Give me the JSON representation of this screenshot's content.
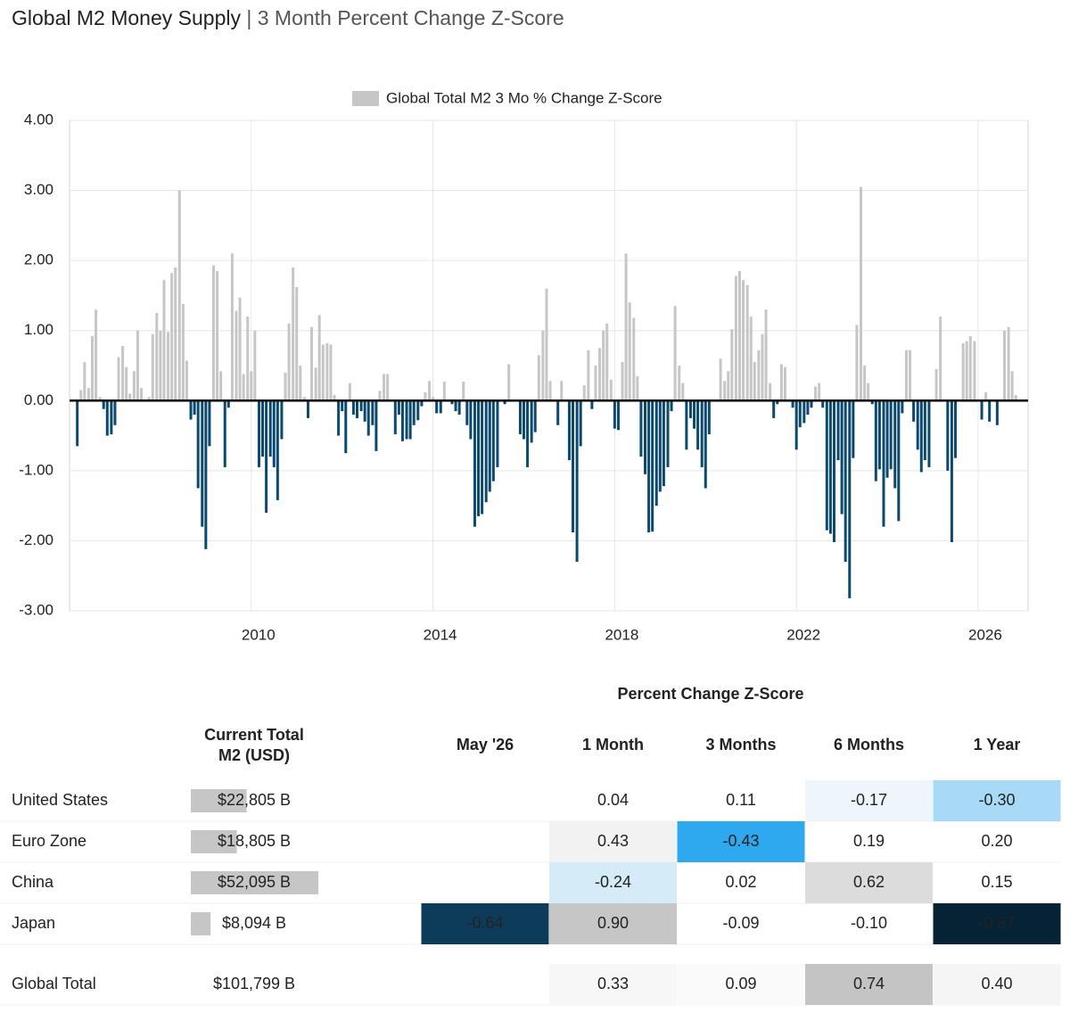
{
  "chart_data": {
    "type": "bar",
    "title": "Global M2 Money Supply",
    "subtitle": "| 3 Month Percent Change Z-Score",
    "x": [
      2006.17,
      2006.25,
      2006.33,
      2006.42,
      2006.5,
      2006.58,
      2006.67,
      2006.75,
      2006.83,
      2006.92,
      2007,
      2007.08,
      2007.17,
      2007.25,
      2007.33,
      2007.42,
      2007.5,
      2007.58,
      2007.67,
      2007.75,
      2007.83,
      2007.92,
      2008,
      2008.08,
      2008.17,
      2008.25,
      2008.33,
      2008.42,
      2008.5,
      2008.58,
      2008.67,
      2008.75,
      2008.83,
      2008.92,
      2009,
      2009.08,
      2009.17,
      2009.25,
      2009.33,
      2009.42,
      2009.5,
      2009.58,
      2009.67,
      2009.75,
      2009.83,
      2009.92,
      2010,
      2010.08,
      2010.17,
      2010.25,
      2010.33,
      2010.42,
      2010.5,
      2010.58,
      2010.67,
      2010.75,
      2010.83,
      2010.92,
      2011,
      2011.08,
      2011.17,
      2011.25,
      2011.33,
      2011.42,
      2011.5,
      2011.58,
      2011.67,
      2011.75,
      2011.83,
      2011.92,
      2012,
      2012.08,
      2012.17,
      2012.25,
      2012.33,
      2012.42,
      2012.5,
      2012.58,
      2012.67,
      2012.75,
      2012.83,
      2012.92,
      2013,
      2013.08,
      2013.17,
      2013.25,
      2013.33,
      2013.42,
      2013.5,
      2013.58,
      2013.67,
      2013.75,
      2013.83,
      2013.92,
      2014,
      2014.08,
      2014.17,
      2014.25,
      2014.33,
      2014.42,
      2014.5,
      2014.58,
      2014.67,
      2014.75,
      2014.83,
      2014.92,
      2015,
      2015.08,
      2015.17,
      2015.25,
      2015.33,
      2015.42,
      2015.5,
      2015.58,
      2015.67,
      2015.75,
      2015.83,
      2015.92,
      2016,
      2016.08,
      2016.17,
      2016.25,
      2016.33,
      2016.42,
      2016.5,
      2016.58,
      2016.67,
      2016.75,
      2016.83,
      2016.92,
      2017,
      2017.08,
      2017.17,
      2017.25,
      2017.33,
      2017.42,
      2017.5,
      2017.58,
      2017.67,
      2017.75,
      2017.83,
      2017.92,
      2018,
      2018.08,
      2018.17,
      2018.25,
      2018.33,
      2018.42,
      2018.5,
      2018.58,
      2018.67,
      2018.75,
      2018.83,
      2018.92,
      2019,
      2019.08,
      2019.17,
      2019.25,
      2019.33,
      2019.42,
      2019.5,
      2019.58,
      2019.67,
      2019.75,
      2019.83,
      2019.92,
      2020,
      2020.08,
      2020.17,
      2020.25,
      2020.33,
      2020.42,
      2020.5,
      2020.58,
      2020.67,
      2020.75,
      2020.83,
      2020.92,
      2021,
      2021.08,
      2021.17,
      2021.25,
      2021.33,
      2021.42,
      2021.5,
      2021.58,
      2021.67,
      2021.75,
      2021.83,
      2021.92,
      2022,
      2022.08,
      2022.17,
      2022.25,
      2022.33,
      2022.42,
      2022.5,
      2022.58,
      2022.67,
      2022.75,
      2022.83,
      2022.92,
      2023,
      2023.08,
      2023.17,
      2023.25,
      2023.33,
      2023.42,
      2023.5,
      2023.58,
      2023.67,
      2023.75,
      2023.83,
      2023.92,
      2024,
      2024.08,
      2024.17,
      2024.25,
      2024.33,
      2024.42,
      2024.5,
      2024.58,
      2024.67,
      2024.75,
      2024.83,
      2024.92,
      2025,
      2025.08,
      2025.17,
      2025.25,
      2025.33,
      2025.42,
      2025.5,
      2025.58,
      2025.67,
      2025.75,
      2025.83,
      2025.92,
      2026,
      2026.08,
      2026.17,
      2026.25,
      2026.33,
      2026.42,
      2026.5,
      2026.58,
      2026.67,
      2026.75,
      2026.83
    ],
    "series": [
      {
        "name": "Global Total M2 3 Mo % Change Z-Score",
        "color": "#c6c6c6",
        "negative_color": "#0b4a6e",
        "values": [
          -0.65,
          0.15,
          0.55,
          0.18,
          0.92,
          1.3,
          0.05,
          -0.12,
          -0.5,
          -0.48,
          -0.35,
          0.62,
          0.78,
          0.48,
          0.1,
          0.42,
          1.0,
          0.18,
          0.0,
          0.05,
          0.95,
          1.25,
          1.0,
          1.72,
          0.98,
          1.82,
          1.9,
          3.0,
          1.38,
          0.57,
          -0.27,
          -0.2,
          -1.25,
          -1.8,
          -2.12,
          -0.65,
          1.93,
          1.85,
          0.42,
          -0.95,
          -0.1,
          2.1,
          1.28,
          1.47,
          0.38,
          1.2,
          0.42,
          1.0,
          -0.95,
          -0.8,
          -1.6,
          -0.8,
          -0.95,
          -1.42,
          -0.55,
          0.4,
          1.1,
          1.9,
          1.62,
          0.5,
          0.05,
          -0.25,
          1.05,
          0.47,
          1.22,
          0.8,
          0.82,
          0.8,
          0.08,
          -0.5,
          -0.15,
          -0.75,
          0.25,
          -0.2,
          -0.25,
          -0.15,
          -0.3,
          -0.5,
          -0.35,
          -0.72,
          0.14,
          0.38,
          0.38,
          0.0,
          -0.48,
          -0.2,
          -0.58,
          -0.55,
          -0.55,
          -0.35,
          -0.28,
          -0.08,
          0.12,
          0.28,
          0.05,
          -0.18,
          -0.18,
          0.27,
          0.0,
          -0.05,
          -0.15,
          -0.2,
          0.27,
          -0.35,
          -0.55,
          -1.8,
          -1.65,
          -1.62,
          -1.45,
          -1.3,
          -1.15,
          -0.95,
          0.0,
          -0.05,
          0.52,
          0.0,
          0.0,
          -0.48,
          -0.55,
          -0.95,
          -0.6,
          -0.45,
          0.65,
          1.0,
          1.6,
          0.28,
          0.0,
          -0.35,
          0.28,
          0.0,
          -0.85,
          -1.88,
          -2.3,
          -0.65,
          0.22,
          0.72,
          -0.12,
          0.5,
          0.75,
          1.0,
          1.1,
          0.3,
          -0.4,
          -0.42,
          0.55,
          2.1,
          1.4,
          1.18,
          0.35,
          -0.8,
          -1.05,
          -1.88,
          -1.87,
          -1.5,
          -1.3,
          -1.22,
          -0.95,
          -0.15,
          1.35,
          0.5,
          0.25,
          -0.7,
          -0.25,
          -0.4,
          -0.7,
          -0.95,
          -1.25,
          -0.48,
          0.0,
          0.0,
          0.6,
          0.28,
          0.42,
          1.02,
          1.78,
          1.85,
          1.72,
          1.65,
          1.2,
          0.55,
          0.72,
          0.95,
          1.3,
          0.25,
          -0.25,
          -0.05,
          0.52,
          0.48,
          0.0,
          -0.1,
          -0.7,
          -0.38,
          -0.32,
          -0.2,
          -0.1,
          0.2,
          0.25,
          -0.1,
          -1.85,
          -1.9,
          -2.02,
          -0.85,
          -1.62,
          -2.3,
          -2.82,
          -0.82,
          1.08,
          3.05,
          0.5,
          0.25,
          -0.05,
          -1.15,
          -0.98,
          -1.8,
          -1.1,
          -0.98,
          -1.25,
          -1.72,
          -0.18,
          0.72,
          0.72,
          -0.3,
          -0.7,
          -1.02,
          -0.85,
          -0.95,
          0.0,
          0.45,
          1.2,
          0.0,
          -1.0,
          -2.02,
          -0.82,
          0.0,
          0.82,
          0.85,
          0.92,
          0.85,
          0.0,
          -0.27,
          0.12,
          -0.3,
          0.0,
          -0.35,
          0.0,
          1.0,
          1.05,
          0.42,
          0.08
        ]
      }
    ],
    "xlim": [
      2006.0,
      2027.1
    ],
    "xticks": [
      2010,
      2014,
      2018,
      2022,
      2026
    ],
    "ylim": [
      -3,
      4
    ],
    "yticks": [
      {
        "value": 4,
        "label": "4.00"
      },
      {
        "value": 3,
        "label": "3.00"
      },
      {
        "value": 2,
        "label": "2.00"
      },
      {
        "value": 1,
        "label": "1.00"
      },
      {
        "value": 0,
        "label": "0.00"
      },
      {
        "value": -1,
        "label": "-1.00"
      },
      {
        "value": -2,
        "label": "-2.00"
      },
      {
        "value": -3,
        "label": "-3.00"
      }
    ],
    "grid": true,
    "legend": "top"
  },
  "table": {
    "title": "Percent Change Z-Score",
    "m2_header": [
      "Current Total",
      "M2 (USD)"
    ],
    "columns": [
      "May '26",
      "1 Month",
      "3 Months",
      "6 Months",
      "1 Year"
    ],
    "rows": [
      {
        "name": "United States",
        "m2": {
          "value": 22805,
          "label": "$22,805 B"
        },
        "cells": [
          null,
          "0.04",
          "0.11",
          "-0.17",
          "-0.30"
        ],
        "colors": [
          null,
          null,
          null,
          "#eef6fc",
          "#a9daf5"
        ]
      },
      {
        "name": "Euro Zone",
        "m2": {
          "value": 18805,
          "label": "$18,805 B"
        },
        "cells": [
          null,
          "0.43",
          "-0.43",
          "0.19",
          "0.20"
        ],
        "colors": [
          null,
          "#f2f2f2",
          "#2ea8ef",
          null,
          null
        ]
      },
      {
        "name": "China",
        "m2": {
          "value": 52095,
          "label": "$52,095 B"
        },
        "cells": [
          null,
          "-0.24",
          "0.02",
          "0.62",
          "0.15"
        ],
        "colors": [
          null,
          "#d5ebf7",
          null,
          "#dcdcdc",
          null
        ]
      },
      {
        "name": "Japan",
        "m2": {
          "value": 8094,
          "label": "$8,094 B"
        },
        "cells": [
          "-0.64",
          "0.90",
          "-0.09",
          "-0.10",
          "-0.87"
        ],
        "colors": [
          "#0c3c5a",
          "#c6c6c6",
          null,
          null,
          "#062335"
        ]
      },
      {
        "name": "Global Total",
        "m2": {
          "label": "$101,799 B"
        },
        "cells": [
          null,
          "0.33",
          "0.09",
          "0.74",
          "0.40"
        ],
        "colors": [
          null,
          "#f7f7f7",
          "#fafafa",
          "#c4c4c4",
          "#f5f5f5"
        ]
      }
    ]
  }
}
